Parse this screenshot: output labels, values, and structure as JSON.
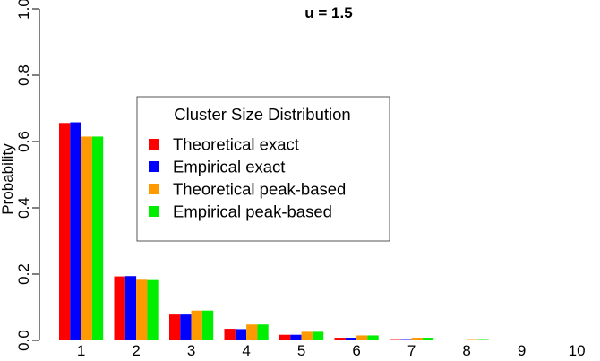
{
  "chart_data": {
    "type": "bar",
    "title": "u = 1.5",
    "ylabel": "Probability",
    "xlabel": "",
    "ylim": [
      0,
      1.0
    ],
    "yticks": [
      "0.0",
      "0.2",
      "0.4",
      "0.6",
      "0.8",
      "1.0"
    ],
    "categories": [
      "1",
      "2",
      "3",
      "4",
      "5",
      "6",
      "7",
      "8",
      "9",
      "10"
    ],
    "series": [
      {
        "name": "Theoretical exact",
        "color": "#ff0000",
        "values": [
          0.656,
          0.193,
          0.078,
          0.035,
          0.017,
          0.008,
          0.004,
          0.002,
          0.001,
          0.0005
        ]
      },
      {
        "name": "Empirical exact",
        "color": "#0000ff",
        "values": [
          0.658,
          0.194,
          0.078,
          0.034,
          0.017,
          0.008,
          0.004,
          0.002,
          0.001,
          0.0005
        ]
      },
      {
        "name": "Theoretical peak-based",
        "color": "#ff9900",
        "values": [
          0.615,
          0.183,
          0.09,
          0.048,
          0.026,
          0.015,
          0.008,
          0.004,
          0.002,
          0.001
        ]
      },
      {
        "name": "Empirical peak-based",
        "color": "#00ee00",
        "values": [
          0.615,
          0.182,
          0.09,
          0.048,
          0.026,
          0.015,
          0.008,
          0.004,
          0.002,
          0.001
        ]
      }
    ],
    "legend": {
      "title": "Cluster Size Distribution",
      "placement": "top-center"
    }
  }
}
